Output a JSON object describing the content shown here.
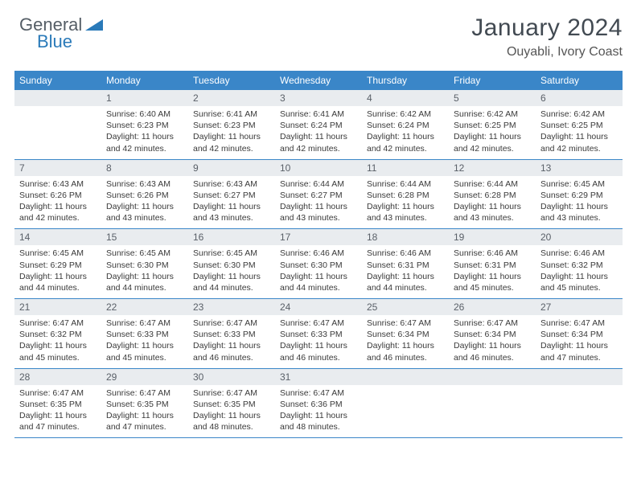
{
  "logo": {
    "part1": "General",
    "part2": "Blue"
  },
  "title": "January 2024",
  "location": "Ouyabli, Ivory Coast",
  "colors": {
    "header_bg": "#3a86c8",
    "header_fg": "#ffffff",
    "daynum_bg": "#e9ecef",
    "rule": "#3a86c8",
    "accent": "#2a7ab9"
  },
  "day_headers": [
    "Sunday",
    "Monday",
    "Tuesday",
    "Wednesday",
    "Thursday",
    "Friday",
    "Saturday"
  ],
  "weeks": [
    [
      null,
      {
        "n": "1",
        "sr": "Sunrise: 6:40 AM",
        "ss": "Sunset: 6:23 PM",
        "d1": "Daylight: 11 hours",
        "d2": "and 42 minutes."
      },
      {
        "n": "2",
        "sr": "Sunrise: 6:41 AM",
        "ss": "Sunset: 6:23 PM",
        "d1": "Daylight: 11 hours",
        "d2": "and 42 minutes."
      },
      {
        "n": "3",
        "sr": "Sunrise: 6:41 AM",
        "ss": "Sunset: 6:24 PM",
        "d1": "Daylight: 11 hours",
        "d2": "and 42 minutes."
      },
      {
        "n": "4",
        "sr": "Sunrise: 6:42 AM",
        "ss": "Sunset: 6:24 PM",
        "d1": "Daylight: 11 hours",
        "d2": "and 42 minutes."
      },
      {
        "n": "5",
        "sr": "Sunrise: 6:42 AM",
        "ss": "Sunset: 6:25 PM",
        "d1": "Daylight: 11 hours",
        "d2": "and 42 minutes."
      },
      {
        "n": "6",
        "sr": "Sunrise: 6:42 AM",
        "ss": "Sunset: 6:25 PM",
        "d1": "Daylight: 11 hours",
        "d2": "and 42 minutes."
      }
    ],
    [
      {
        "n": "7",
        "sr": "Sunrise: 6:43 AM",
        "ss": "Sunset: 6:26 PM",
        "d1": "Daylight: 11 hours",
        "d2": "and 42 minutes."
      },
      {
        "n": "8",
        "sr": "Sunrise: 6:43 AM",
        "ss": "Sunset: 6:26 PM",
        "d1": "Daylight: 11 hours",
        "d2": "and 43 minutes."
      },
      {
        "n": "9",
        "sr": "Sunrise: 6:43 AM",
        "ss": "Sunset: 6:27 PM",
        "d1": "Daylight: 11 hours",
        "d2": "and 43 minutes."
      },
      {
        "n": "10",
        "sr": "Sunrise: 6:44 AM",
        "ss": "Sunset: 6:27 PM",
        "d1": "Daylight: 11 hours",
        "d2": "and 43 minutes."
      },
      {
        "n": "11",
        "sr": "Sunrise: 6:44 AM",
        "ss": "Sunset: 6:28 PM",
        "d1": "Daylight: 11 hours",
        "d2": "and 43 minutes."
      },
      {
        "n": "12",
        "sr": "Sunrise: 6:44 AM",
        "ss": "Sunset: 6:28 PM",
        "d1": "Daylight: 11 hours",
        "d2": "and 43 minutes."
      },
      {
        "n": "13",
        "sr": "Sunrise: 6:45 AM",
        "ss": "Sunset: 6:29 PM",
        "d1": "Daylight: 11 hours",
        "d2": "and 43 minutes."
      }
    ],
    [
      {
        "n": "14",
        "sr": "Sunrise: 6:45 AM",
        "ss": "Sunset: 6:29 PM",
        "d1": "Daylight: 11 hours",
        "d2": "and 44 minutes."
      },
      {
        "n": "15",
        "sr": "Sunrise: 6:45 AM",
        "ss": "Sunset: 6:30 PM",
        "d1": "Daylight: 11 hours",
        "d2": "and 44 minutes."
      },
      {
        "n": "16",
        "sr": "Sunrise: 6:45 AM",
        "ss": "Sunset: 6:30 PM",
        "d1": "Daylight: 11 hours",
        "d2": "and 44 minutes."
      },
      {
        "n": "17",
        "sr": "Sunrise: 6:46 AM",
        "ss": "Sunset: 6:30 PM",
        "d1": "Daylight: 11 hours",
        "d2": "and 44 minutes."
      },
      {
        "n": "18",
        "sr": "Sunrise: 6:46 AM",
        "ss": "Sunset: 6:31 PM",
        "d1": "Daylight: 11 hours",
        "d2": "and 44 minutes."
      },
      {
        "n": "19",
        "sr": "Sunrise: 6:46 AM",
        "ss": "Sunset: 6:31 PM",
        "d1": "Daylight: 11 hours",
        "d2": "and 45 minutes."
      },
      {
        "n": "20",
        "sr": "Sunrise: 6:46 AM",
        "ss": "Sunset: 6:32 PM",
        "d1": "Daylight: 11 hours",
        "d2": "and 45 minutes."
      }
    ],
    [
      {
        "n": "21",
        "sr": "Sunrise: 6:47 AM",
        "ss": "Sunset: 6:32 PM",
        "d1": "Daylight: 11 hours",
        "d2": "and 45 minutes."
      },
      {
        "n": "22",
        "sr": "Sunrise: 6:47 AM",
        "ss": "Sunset: 6:33 PM",
        "d1": "Daylight: 11 hours",
        "d2": "and 45 minutes."
      },
      {
        "n": "23",
        "sr": "Sunrise: 6:47 AM",
        "ss": "Sunset: 6:33 PM",
        "d1": "Daylight: 11 hours",
        "d2": "and 46 minutes."
      },
      {
        "n": "24",
        "sr": "Sunrise: 6:47 AM",
        "ss": "Sunset: 6:33 PM",
        "d1": "Daylight: 11 hours",
        "d2": "and 46 minutes."
      },
      {
        "n": "25",
        "sr": "Sunrise: 6:47 AM",
        "ss": "Sunset: 6:34 PM",
        "d1": "Daylight: 11 hours",
        "d2": "and 46 minutes."
      },
      {
        "n": "26",
        "sr": "Sunrise: 6:47 AM",
        "ss": "Sunset: 6:34 PM",
        "d1": "Daylight: 11 hours",
        "d2": "and 46 minutes."
      },
      {
        "n": "27",
        "sr": "Sunrise: 6:47 AM",
        "ss": "Sunset: 6:34 PM",
        "d1": "Daylight: 11 hours",
        "d2": "and 47 minutes."
      }
    ],
    [
      {
        "n": "28",
        "sr": "Sunrise: 6:47 AM",
        "ss": "Sunset: 6:35 PM",
        "d1": "Daylight: 11 hours",
        "d2": "and 47 minutes."
      },
      {
        "n": "29",
        "sr": "Sunrise: 6:47 AM",
        "ss": "Sunset: 6:35 PM",
        "d1": "Daylight: 11 hours",
        "d2": "and 47 minutes."
      },
      {
        "n": "30",
        "sr": "Sunrise: 6:47 AM",
        "ss": "Sunset: 6:35 PM",
        "d1": "Daylight: 11 hours",
        "d2": "and 48 minutes."
      },
      {
        "n": "31",
        "sr": "Sunrise: 6:47 AM",
        "ss": "Sunset: 6:36 PM",
        "d1": "Daylight: 11 hours",
        "d2": "and 48 minutes."
      },
      null,
      null,
      null
    ]
  ]
}
